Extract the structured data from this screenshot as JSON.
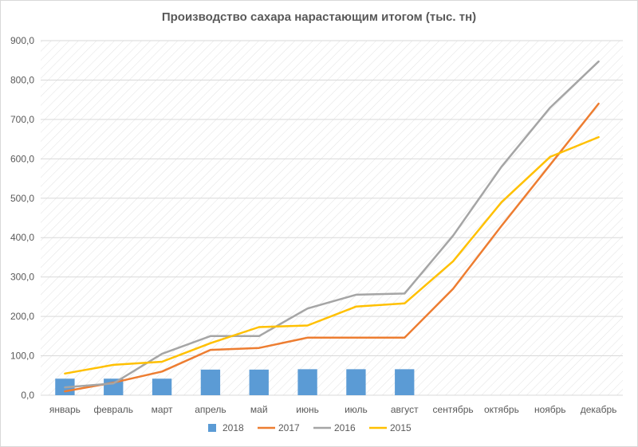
{
  "chart_data": {
    "type": "bar+line",
    "title": "Производство сахара нарастающим итогом (тыс. тн)",
    "categories": [
      "январь",
      "февраль",
      "март",
      "апрель",
      "май",
      "июнь",
      "июль",
      "август",
      "сентябрь",
      "октябрь",
      "ноябрь",
      "декабрь"
    ],
    "ylim": [
      0,
      900
    ],
    "yticks": [
      "0,0",
      "100,0",
      "200,0",
      "300,0",
      "400,0",
      "500,0",
      "600,0",
      "700,0",
      "800,0",
      "900,0"
    ],
    "grid": "diagonal-hatch",
    "legend_position": "bottom",
    "series": [
      {
        "name": "2018",
        "kind": "bar",
        "color": "#5B9BD5",
        "values": [
          42,
          42,
          42,
          65,
          65,
          66,
          66,
          66,
          null,
          null,
          null,
          null
        ]
      },
      {
        "name": "2017",
        "kind": "line",
        "color": "#ED7D31",
        "values": [
          10,
          32,
          60,
          115,
          120,
          146,
          146,
          146,
          270,
          430,
          585,
          740
        ]
      },
      {
        "name": "2016",
        "kind": "line",
        "color": "#A5A5A5",
        "values": [
          20,
          30,
          105,
          150,
          150,
          220,
          255,
          258,
          405,
          580,
          730,
          847
        ]
      },
      {
        "name": "2015",
        "kind": "line",
        "color": "#FFC000",
        "values": [
          55,
          77,
          85,
          132,
          173,
          177,
          225,
          233,
          340,
          490,
          605,
          655
        ]
      }
    ]
  }
}
